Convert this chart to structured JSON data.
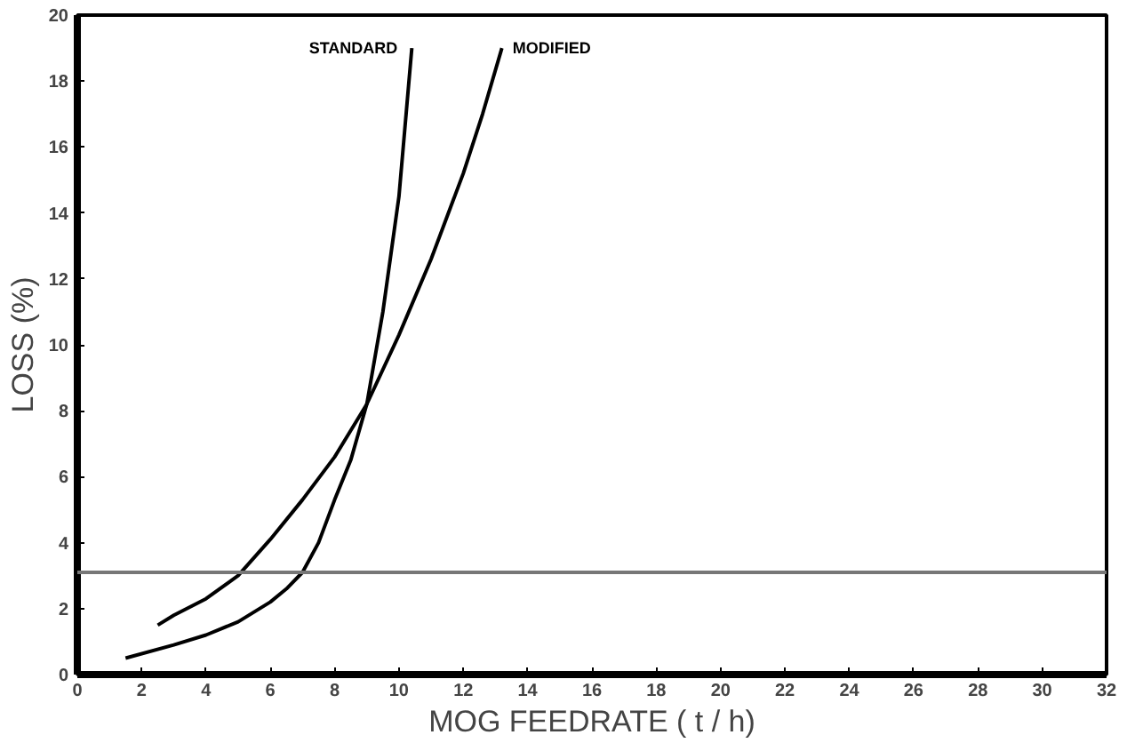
{
  "chart_data": {
    "type": "line",
    "xlabel": "MOG FEEDRATE ( t / h)",
    "ylabel": "LOSS (%)",
    "xlim": [
      0,
      32
    ],
    "ylim": [
      0,
      20
    ],
    "xticks": [
      0,
      2,
      4,
      6,
      8,
      10,
      12,
      14,
      16,
      18,
      20,
      22,
      24,
      26,
      28,
      30,
      32
    ],
    "yticks": [
      0,
      2,
      4,
      6,
      8,
      10,
      12,
      14,
      16,
      18,
      20
    ],
    "grid": false,
    "marker": "none",
    "line_style": "solid",
    "series": [
      {
        "name": "STANDARD",
        "color": "#000000",
        "x": [
          1.5,
          3,
          4,
          5,
          6,
          6.5,
          7,
          7.5,
          8,
          8.5,
          9,
          9.5,
          10,
          10.4
        ],
        "values": [
          0.5,
          0.9,
          1.2,
          1.6,
          2.2,
          2.6,
          3.1,
          4,
          5.3,
          6.5,
          8.2,
          11,
          14.5,
          19
        ]
      },
      {
        "name": "MODIFIED",
        "color": "#000000",
        "x": [
          2.5,
          3,
          4,
          5,
          6,
          7,
          8,
          9,
          10,
          11,
          12,
          12.6,
          13.2
        ],
        "values": [
          1.5,
          1.8,
          2.3,
          3,
          4.1,
          5.3,
          6.6,
          8.2,
          10.3,
          12.6,
          15.2,
          17,
          19
        ]
      }
    ],
    "ref_lines": [
      {
        "axis": "y",
        "value": 3.1,
        "color": "#777777"
      }
    ]
  }
}
